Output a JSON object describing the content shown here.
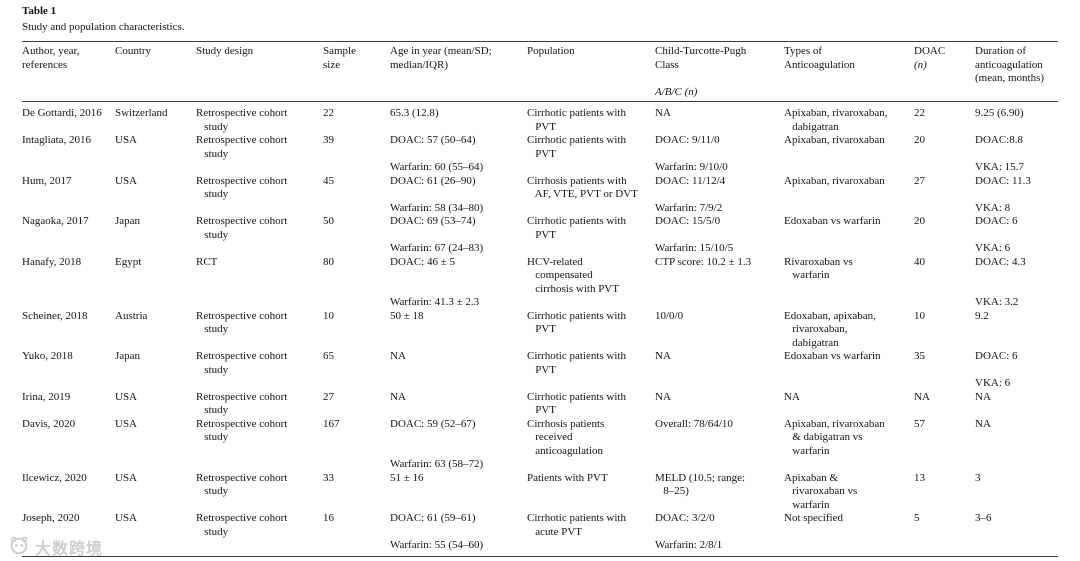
{
  "table": {
    "title": "Table 1",
    "caption": "Study and population characteristics.",
    "italic_lines": [
      "A/B/C (n)",
      "(n)"
    ],
    "header": [
      [
        "Author, year,",
        "references"
      ],
      [
        "Country"
      ],
      [
        "Study design"
      ],
      [
        "Sample",
        "size"
      ],
      [
        "Age in year (mean/SD;",
        "median/IQR)"
      ],
      [
        "Population"
      ],
      [
        "Child-Turcotte-Pugh",
        "Class",
        "",
        "A/B/C (n)"
      ],
      [
        "Types of",
        "Anticoagulation"
      ],
      [
        "DOAC",
        "(n)"
      ],
      [
        "Duration of",
        "anticoagulation",
        "(mean, months)"
      ]
    ],
    "rows": [
      {
        "cells": [
          [
            "De Gottardi, 2016"
          ],
          [
            "Switzerland"
          ],
          [
            "Retrospective cohort",
            "   study"
          ],
          [
            "22"
          ],
          [
            "65.3 (12.8)"
          ],
          [
            "Cirrhotic patients with",
            "   PVT"
          ],
          [
            "NA"
          ],
          [
            "Apixaban, rivaroxaban,",
            "   dabigatran"
          ],
          [
            "22"
          ],
          [
            "9.25 (6.90)"
          ]
        ]
      },
      {
        "cells": [
          [
            "Intagliata, 2016"
          ],
          [
            "USA"
          ],
          [
            "Retrospective cohort",
            "   study"
          ],
          [
            "39"
          ],
          [
            "DOAC: 57 (50–64)",
            "",
            "Warfarin: 60 (55–64)"
          ],
          [
            "Cirrhotic patients with",
            "   PVT"
          ],
          [
            "DOAC: 9/11/0",
            "",
            "Warfarin: 9/10/0"
          ],
          [
            "Apixaban, rivaroxaban"
          ],
          [
            "20"
          ],
          [
            "DOAC:8.8",
            "",
            "VKA: 15.7"
          ]
        ]
      },
      {
        "cells": [
          [
            "Hum, 2017"
          ],
          [
            "USA"
          ],
          [
            "Retrospective cohort",
            "   study"
          ],
          [
            "45"
          ],
          [
            "DOAC: 61 (26–90)",
            "",
            "Warfarin: 58 (34–80)"
          ],
          [
            "Cirrhosis patients with",
            "   AF, VTE, PVT or DVT"
          ],
          [
            "DOAC: 11/12/4",
            "",
            "Warfarin: 7/9/2"
          ],
          [
            "Apixaban, rivaroxaban"
          ],
          [
            "27"
          ],
          [
            "DOAC: 11.3",
            "",
            "VKA: 8"
          ]
        ]
      },
      {
        "cells": [
          [
            "Nagaoka, 2017"
          ],
          [
            "Japan"
          ],
          [
            "Retrospective cohort",
            "   study"
          ],
          [
            "50"
          ],
          [
            "DOAC: 69 (53–74)",
            "",
            "Warfarin: 67 (24–83)"
          ],
          [
            "Cirrhotic patients with",
            "   PVT"
          ],
          [
            "DOAC: 15/5/0",
            "",
            "Warfarin: 15/10/5"
          ],
          [
            "Edoxaban vs warfarin"
          ],
          [
            "20"
          ],
          [
            "DOAC: 6",
            "",
            "VKA: 6"
          ]
        ]
      },
      {
        "cells": [
          [
            "Hanafy, 2018"
          ],
          [
            "Egypt"
          ],
          [
            "RCT"
          ],
          [
            "80"
          ],
          [
            "DOAC: 46 ± 5",
            "",
            "",
            "Warfarin: 41.3 ± 2.3"
          ],
          [
            "HCV-related",
            "   compensated",
            "   cirrhosis with PVT"
          ],
          [
            "CTP score: 10.2 ± 1.3"
          ],
          [
            "Rivaroxaban vs",
            "   warfarin"
          ],
          [
            "40"
          ],
          [
            "DOAC: 4.3",
            "",
            "",
            "VKA: 3.2"
          ]
        ]
      },
      {
        "cells": [
          [
            "Scheiner, 2018"
          ],
          [
            "Austria"
          ],
          [
            "Retrospective cohort",
            "   study"
          ],
          [
            "10"
          ],
          [
            "50 ± 18"
          ],
          [
            "Cirrhotic patients with",
            "   PVT"
          ],
          [
            "10/0/0"
          ],
          [
            "Edoxaban, apixaban,",
            "   rivaroxaban,",
            "   dabigatran"
          ],
          [
            "10"
          ],
          [
            "9.2"
          ]
        ]
      },
      {
        "cells": [
          [
            "Yuko, 2018"
          ],
          [
            "Japan"
          ],
          [
            "Retrospective cohort",
            "   study"
          ],
          [
            "65"
          ],
          [
            "NA"
          ],
          [
            "Cirrhotic patients with",
            "   PVT"
          ],
          [
            "NA"
          ],
          [
            "Edoxaban vs warfarin"
          ],
          [
            "35"
          ],
          [
            "DOAC: 6",
            "",
            "VKA: 6"
          ]
        ]
      },
      {
        "cells": [
          [
            "Irina, 2019"
          ],
          [
            "USA"
          ],
          [
            "Retrospective cohort",
            "   study"
          ],
          [
            "27"
          ],
          [
            "NA"
          ],
          [
            "Cirrhotic patients with",
            "   PVT"
          ],
          [
            "NA"
          ],
          [
            "NA"
          ],
          [
            "NA"
          ],
          [
            "NA"
          ]
        ]
      },
      {
        "cells": [
          [
            "Davis, 2020"
          ],
          [
            "USA"
          ],
          [
            "Retrospective cohort",
            "   study"
          ],
          [
            "167"
          ],
          [
            "DOAC: 59 (52–67)",
            "",
            "",
            "Warfarin: 63 (58–72)"
          ],
          [
            "Cirrhosis patients",
            "   received",
            "   anticoagulation"
          ],
          [
            "Overall: 78/64/10"
          ],
          [
            "Apixaban, rivaroxaban",
            "   & dabigatran vs",
            "   warfarin"
          ],
          [
            "57"
          ],
          [
            "NA"
          ]
        ]
      },
      {
        "cells": [
          [
            "Ilcewicz, 2020"
          ],
          [
            "USA"
          ],
          [
            "Retrospective cohort",
            "   study"
          ],
          [
            "33"
          ],
          [
            "51 ± 16"
          ],
          [
            "Patients with PVT"
          ],
          [
            "MELD (10.5; range:",
            "   8–25)"
          ],
          [
            "Apixaban &",
            "   rivaroxaban vs",
            "   warfarin"
          ],
          [
            "13"
          ],
          [
            "3"
          ]
        ]
      },
      {
        "cells": [
          [
            "Joseph, 2020"
          ],
          [
            "USA"
          ],
          [
            "Retrospective cohort",
            "   study"
          ],
          [
            "16"
          ],
          [
            "DOAC: 61 (59–61)",
            "",
            "Warfarin: 55 (54–60)"
          ],
          [
            "Cirrhotic patients with",
            "   acute PVT"
          ],
          [
            "DOAC: 3/2/0",
            "",
            "Warfarin: 2/8/1"
          ],
          [
            "Not specified"
          ],
          [
            "5"
          ],
          [
            "3–6"
          ]
        ]
      }
    ]
  },
  "watermark": {
    "text": "大数跨境"
  }
}
